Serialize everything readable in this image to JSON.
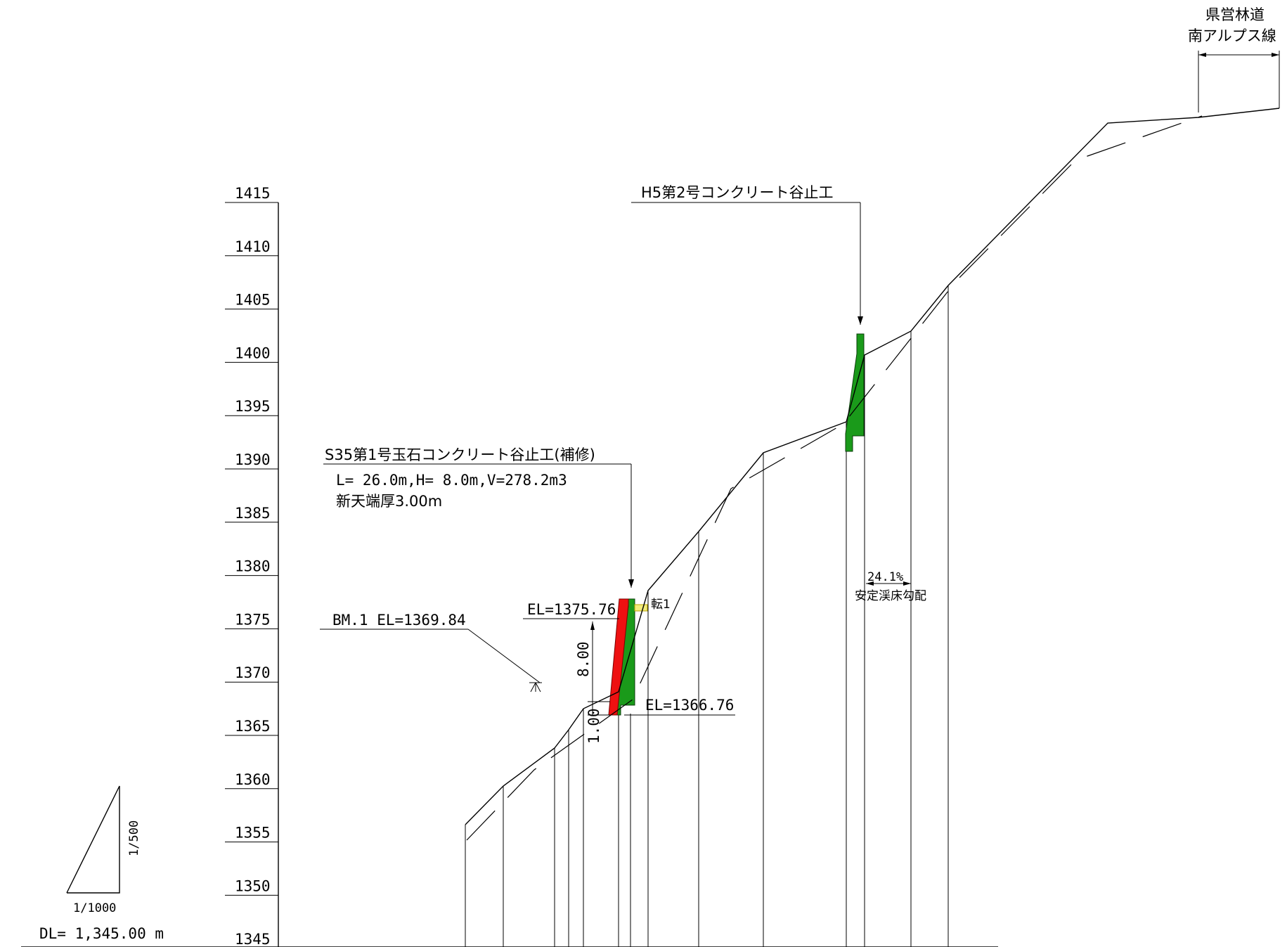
{
  "datum_label": "DL= 1,345.00 m",
  "elevation_ticks": [
    "1415",
    "1410",
    "1405",
    "1400",
    "1395",
    "1390",
    "1385",
    "1380",
    "1375",
    "1370",
    "1365",
    "1360",
    "1355",
    "1350",
    "1345"
  ],
  "scale": {
    "vertical": "1/500",
    "horizontal": "1/1000"
  },
  "road": {
    "line1": "県営林道",
    "line2": "南アルプス線"
  },
  "dam_upper": {
    "title": "H5第2号コンクリート谷止工"
  },
  "dam_lower": {
    "title": "S35第1号玉石コンクリート谷止工(補修)",
    "spec": "L= 26.0m,H=  8.0m,V=278.2m3",
    "crest": "新天端厚3.00m"
  },
  "benchmark": "BM.1 EL=1369.84",
  "el_top": "EL=1375.76",
  "el_bottom": "EL=1366.76",
  "dim_height": "8.00",
  "dim_foot": "1.00",
  "boulder_label": "転1",
  "slope": {
    "value": "24.1%",
    "label": "安定渓床勾配"
  },
  "colors": {
    "new_dam": "#1a9a1a",
    "repair": "#ee1111",
    "boulder": "#f2ec7a",
    "line": "#000000"
  }
}
